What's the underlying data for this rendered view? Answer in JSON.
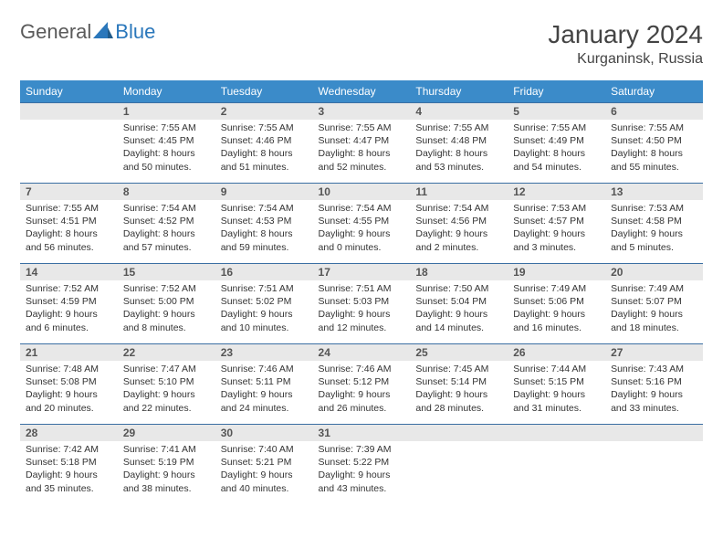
{
  "brand": {
    "part1": "General",
    "part2": "Blue"
  },
  "title": "January 2024",
  "location": "Kurganinsk, Russia",
  "colors": {
    "header_bg": "#3b8bc9",
    "header_text": "#ffffff",
    "row_border": "#3b6fa3",
    "daynum_bg": "#e8e8e8",
    "body_text": "#333333",
    "logo_general": "#5a5a5a",
    "logo_blue": "#2a77bb",
    "logo_icon": "#2a77bb"
  },
  "weekdays": [
    "Sunday",
    "Monday",
    "Tuesday",
    "Wednesday",
    "Thursday",
    "Friday",
    "Saturday"
  ],
  "weeks": [
    [
      {
        "n": "",
        "sunrise": "",
        "sunset": "",
        "daylight": ""
      },
      {
        "n": "1",
        "sunrise": "Sunrise: 7:55 AM",
        "sunset": "Sunset: 4:45 PM",
        "daylight": "Daylight: 8 hours and 50 minutes."
      },
      {
        "n": "2",
        "sunrise": "Sunrise: 7:55 AM",
        "sunset": "Sunset: 4:46 PM",
        "daylight": "Daylight: 8 hours and 51 minutes."
      },
      {
        "n": "3",
        "sunrise": "Sunrise: 7:55 AM",
        "sunset": "Sunset: 4:47 PM",
        "daylight": "Daylight: 8 hours and 52 minutes."
      },
      {
        "n": "4",
        "sunrise": "Sunrise: 7:55 AM",
        "sunset": "Sunset: 4:48 PM",
        "daylight": "Daylight: 8 hours and 53 minutes."
      },
      {
        "n": "5",
        "sunrise": "Sunrise: 7:55 AM",
        "sunset": "Sunset: 4:49 PM",
        "daylight": "Daylight: 8 hours and 54 minutes."
      },
      {
        "n": "6",
        "sunrise": "Sunrise: 7:55 AM",
        "sunset": "Sunset: 4:50 PM",
        "daylight": "Daylight: 8 hours and 55 minutes."
      }
    ],
    [
      {
        "n": "7",
        "sunrise": "Sunrise: 7:55 AM",
        "sunset": "Sunset: 4:51 PM",
        "daylight": "Daylight: 8 hours and 56 minutes."
      },
      {
        "n": "8",
        "sunrise": "Sunrise: 7:54 AM",
        "sunset": "Sunset: 4:52 PM",
        "daylight": "Daylight: 8 hours and 57 minutes."
      },
      {
        "n": "9",
        "sunrise": "Sunrise: 7:54 AM",
        "sunset": "Sunset: 4:53 PM",
        "daylight": "Daylight: 8 hours and 59 minutes."
      },
      {
        "n": "10",
        "sunrise": "Sunrise: 7:54 AM",
        "sunset": "Sunset: 4:55 PM",
        "daylight": "Daylight: 9 hours and 0 minutes."
      },
      {
        "n": "11",
        "sunrise": "Sunrise: 7:54 AM",
        "sunset": "Sunset: 4:56 PM",
        "daylight": "Daylight: 9 hours and 2 minutes."
      },
      {
        "n": "12",
        "sunrise": "Sunrise: 7:53 AM",
        "sunset": "Sunset: 4:57 PM",
        "daylight": "Daylight: 9 hours and 3 minutes."
      },
      {
        "n": "13",
        "sunrise": "Sunrise: 7:53 AM",
        "sunset": "Sunset: 4:58 PM",
        "daylight": "Daylight: 9 hours and 5 minutes."
      }
    ],
    [
      {
        "n": "14",
        "sunrise": "Sunrise: 7:52 AM",
        "sunset": "Sunset: 4:59 PM",
        "daylight": "Daylight: 9 hours and 6 minutes."
      },
      {
        "n": "15",
        "sunrise": "Sunrise: 7:52 AM",
        "sunset": "Sunset: 5:00 PM",
        "daylight": "Daylight: 9 hours and 8 minutes."
      },
      {
        "n": "16",
        "sunrise": "Sunrise: 7:51 AM",
        "sunset": "Sunset: 5:02 PM",
        "daylight": "Daylight: 9 hours and 10 minutes."
      },
      {
        "n": "17",
        "sunrise": "Sunrise: 7:51 AM",
        "sunset": "Sunset: 5:03 PM",
        "daylight": "Daylight: 9 hours and 12 minutes."
      },
      {
        "n": "18",
        "sunrise": "Sunrise: 7:50 AM",
        "sunset": "Sunset: 5:04 PM",
        "daylight": "Daylight: 9 hours and 14 minutes."
      },
      {
        "n": "19",
        "sunrise": "Sunrise: 7:49 AM",
        "sunset": "Sunset: 5:06 PM",
        "daylight": "Daylight: 9 hours and 16 minutes."
      },
      {
        "n": "20",
        "sunrise": "Sunrise: 7:49 AM",
        "sunset": "Sunset: 5:07 PM",
        "daylight": "Daylight: 9 hours and 18 minutes."
      }
    ],
    [
      {
        "n": "21",
        "sunrise": "Sunrise: 7:48 AM",
        "sunset": "Sunset: 5:08 PM",
        "daylight": "Daylight: 9 hours and 20 minutes."
      },
      {
        "n": "22",
        "sunrise": "Sunrise: 7:47 AM",
        "sunset": "Sunset: 5:10 PM",
        "daylight": "Daylight: 9 hours and 22 minutes."
      },
      {
        "n": "23",
        "sunrise": "Sunrise: 7:46 AM",
        "sunset": "Sunset: 5:11 PM",
        "daylight": "Daylight: 9 hours and 24 minutes."
      },
      {
        "n": "24",
        "sunrise": "Sunrise: 7:46 AM",
        "sunset": "Sunset: 5:12 PM",
        "daylight": "Daylight: 9 hours and 26 minutes."
      },
      {
        "n": "25",
        "sunrise": "Sunrise: 7:45 AM",
        "sunset": "Sunset: 5:14 PM",
        "daylight": "Daylight: 9 hours and 28 minutes."
      },
      {
        "n": "26",
        "sunrise": "Sunrise: 7:44 AM",
        "sunset": "Sunset: 5:15 PM",
        "daylight": "Daylight: 9 hours and 31 minutes."
      },
      {
        "n": "27",
        "sunrise": "Sunrise: 7:43 AM",
        "sunset": "Sunset: 5:16 PM",
        "daylight": "Daylight: 9 hours and 33 minutes."
      }
    ],
    [
      {
        "n": "28",
        "sunrise": "Sunrise: 7:42 AM",
        "sunset": "Sunset: 5:18 PM",
        "daylight": "Daylight: 9 hours and 35 minutes."
      },
      {
        "n": "29",
        "sunrise": "Sunrise: 7:41 AM",
        "sunset": "Sunset: 5:19 PM",
        "daylight": "Daylight: 9 hours and 38 minutes."
      },
      {
        "n": "30",
        "sunrise": "Sunrise: 7:40 AM",
        "sunset": "Sunset: 5:21 PM",
        "daylight": "Daylight: 9 hours and 40 minutes."
      },
      {
        "n": "31",
        "sunrise": "Sunrise: 7:39 AM",
        "sunset": "Sunset: 5:22 PM",
        "daylight": "Daylight: 9 hours and 43 minutes."
      },
      {
        "n": "",
        "sunrise": "",
        "sunset": "",
        "daylight": ""
      },
      {
        "n": "",
        "sunrise": "",
        "sunset": "",
        "daylight": ""
      },
      {
        "n": "",
        "sunrise": "",
        "sunset": "",
        "daylight": ""
      }
    ]
  ]
}
